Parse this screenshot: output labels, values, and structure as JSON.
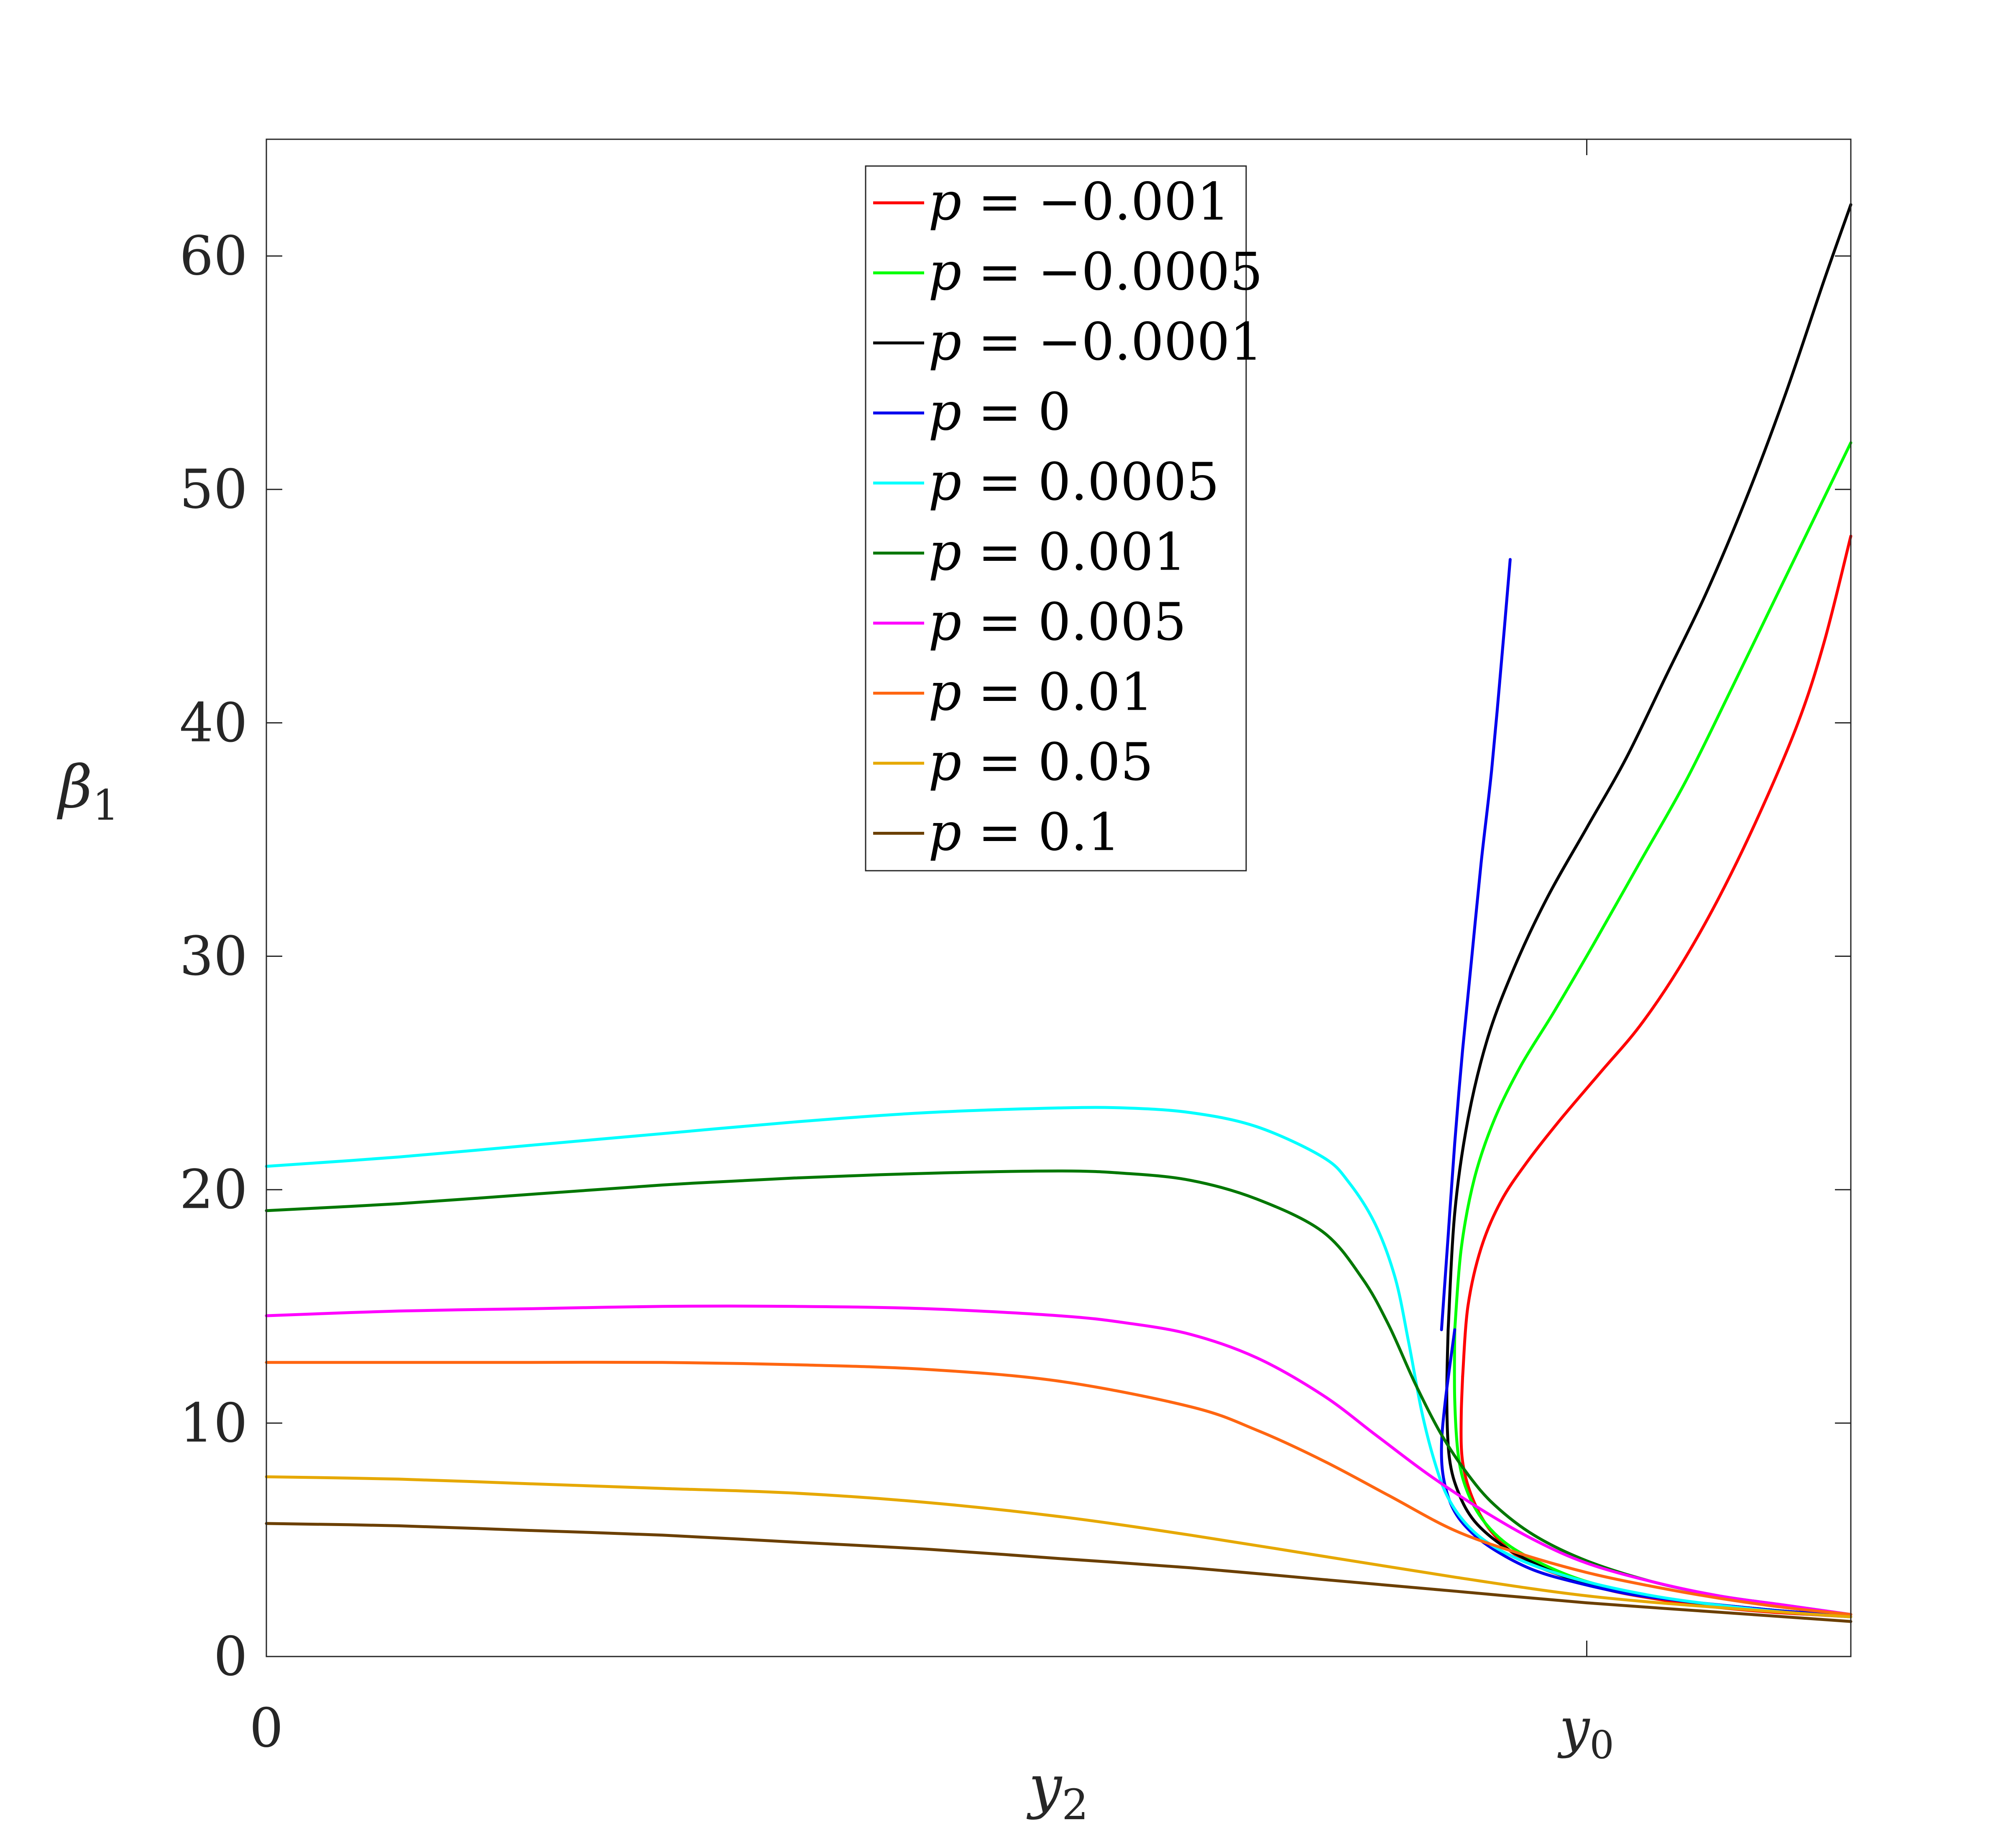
{
  "chart_data": {
    "type": "line",
    "title": "",
    "xlabel": {
      "base": "y",
      "sub": "2"
    },
    "ylabel": {
      "base": "β",
      "sub": "1"
    },
    "xlim": [
      0,
      1.2
    ],
    "ylim": [
      0,
      65
    ],
    "x_ticks": [
      {
        "value": 0,
        "label": "0"
      },
      {
        "value": 1,
        "label": "y",
        "sub": "0"
      }
    ],
    "y_ticks": [
      0,
      10,
      20,
      30,
      40,
      50,
      60
    ],
    "grid": false,
    "legend_position": "top-center",
    "series": [
      {
        "name": "p = −0.001",
        "color": "#ff0000",
        "x": [
          0.906,
          0.905,
          0.905,
          0.907,
          0.912,
          0.92,
          0.93,
          0.945,
          0.965,
          0.99,
          1.02,
          1.06,
          1.1,
          1.14,
          1.17,
          1.2
        ],
        "y": [
          12,
          10.5,
          9,
          8,
          7,
          6,
          5.2,
          4.4,
          3.8,
          3.3,
          2.8,
          2.4,
          2.1,
          1.9,
          1.8,
          1.7
        ]
      },
      {
        "name": "p = −0.001",
        "color": "#ff0000",
        "x": [
          0.906,
          0.91,
          0.92,
          0.935,
          0.955,
          0.98,
          1.01,
          1.04,
          1.07,
          1.1,
          1.13,
          1.16,
          1.18,
          1.2
        ],
        "y": [
          12,
          15,
          17.5,
          19.5,
          21.2,
          23,
          25,
          27,
          29.5,
          32.5,
          36,
          40,
          43.5,
          48
        ]
      },
      {
        "name": "p = −0.0005",
        "color": "#00ff00",
        "x": [
          0.9,
          0.9,
          0.903,
          0.91,
          0.922,
          0.94,
          0.965,
          0.995,
          1.03,
          1.07,
          1.12,
          1.16,
          1.2
        ],
        "y": [
          14,
          11,
          8.5,
          7,
          5.8,
          4.8,
          4,
          3.3,
          2.8,
          2.4,
          2.1,
          1.9,
          1.8
        ]
      },
      {
        "name": "p = −0.0005",
        "color": "#00ff00",
        "x": [
          0.9,
          0.905,
          0.915,
          0.93,
          0.95,
          0.975,
          1.005,
          1.04,
          1.075,
          1.11,
          1.14,
          1.17,
          1.2
        ],
        "y": [
          14,
          17.5,
          20.5,
          23,
          25.3,
          27.6,
          30.5,
          34,
          37.5,
          41.5,
          45,
          48.5,
          52
        ]
      },
      {
        "name": "p = −0.0001",
        "color": "#000000",
        "x": [
          0.895,
          0.894,
          0.896,
          0.903,
          0.915,
          0.935,
          0.96,
          0.99,
          1.03,
          1.07,
          1.12,
          1.16,
          1.2
        ],
        "y": [
          14,
          11,
          8.5,
          7,
          5.8,
          4.8,
          4,
          3.3,
          2.8,
          2.4,
          2.1,
          1.9,
          1.8
        ]
      },
      {
        "name": "p = −0.0001",
        "color": "#000000",
        "x": [
          0.895,
          0.9,
          0.91,
          0.925,
          0.945,
          0.97,
          1.0,
          1.03,
          1.06,
          1.09,
          1.12,
          1.15,
          1.18,
          1.2
        ],
        "y": [
          14,
          19,
          23,
          26.5,
          29.5,
          32.5,
          35.5,
          38.5,
          42,
          45.5,
          49.5,
          54,
          59,
          62.2
        ]
      },
      {
        "name": "p = 0",
        "color": "#0000ee",
        "x": [
          0.9,
          0.893,
          0.89,
          0.892,
          0.9,
          0.915,
          0.935,
          0.96,
          0.99,
          1.03,
          1.07,
          1.12,
          1.16,
          1.2
        ],
        "y": [
          14,
          11,
          9,
          7.5,
          6.2,
          5.2,
          4.4,
          3.7,
          3.2,
          2.7,
          2.4,
          2.1,
          1.9,
          1.8
        ]
      },
      {
        "name": "p = 0",
        "color": "#0000ee",
        "x": [
          0.89,
          0.895,
          0.9,
          0.906,
          0.913,
          0.92,
          0.928,
          0.936,
          0.942
        ],
        "y": [
          14,
          18,
          22,
          26,
          30,
          34,
          38,
          43,
          47
        ]
      },
      {
        "name": "p = 0.0005",
        "color": "#00ffff",
        "x": [
          0,
          0.1,
          0.2,
          0.3,
          0.4,
          0.5,
          0.6,
          0.65,
          0.7,
          0.75,
          0.8,
          0.82,
          0.84,
          0.855,
          0.865,
          0.875,
          0.885,
          0.895,
          0.91,
          0.93,
          0.96,
          1.0,
          1.05,
          1.1,
          1.15,
          1.2
        ],
        "y": [
          21,
          21.4,
          21.9,
          22.4,
          22.9,
          23.3,
          23.5,
          23.5,
          23.3,
          22.7,
          21.4,
          20.3,
          18.5,
          16.2,
          13.5,
          10.5,
          8.3,
          6.8,
          5.6,
          4.7,
          3.9,
          3.2,
          2.6,
          2.2,
          1.9,
          1.7
        ]
      },
      {
        "name": "p = 0.001",
        "color": "#007700",
        "x": [
          0,
          0.1,
          0.2,
          0.3,
          0.4,
          0.5,
          0.6,
          0.65,
          0.7,
          0.75,
          0.8,
          0.83,
          0.85,
          0.87,
          0.89,
          0.91,
          0.93,
          0.96,
          1.0,
          1.05,
          1.1,
          1.15,
          1.2
        ],
        "y": [
          19.1,
          19.4,
          19.8,
          20.2,
          20.5,
          20.7,
          20.8,
          20.7,
          20.4,
          19.6,
          18.2,
          16.2,
          14.2,
          11.7,
          9.5,
          7.8,
          6.5,
          5.2,
          4.1,
          3.2,
          2.6,
          2.2,
          1.8
        ]
      },
      {
        "name": "p = 0.005",
        "color": "#ff00ff",
        "x": [
          0,
          0.1,
          0.2,
          0.3,
          0.4,
          0.5,
          0.6,
          0.65,
          0.7,
          0.75,
          0.8,
          0.84,
          0.88,
          0.92,
          0.96,
          1.0,
          1.05,
          1.1,
          1.15,
          1.2
        ],
        "y": [
          14.6,
          14.8,
          14.9,
          15.0,
          15.0,
          14.9,
          14.6,
          14.3,
          13.8,
          12.8,
          11.2,
          9.5,
          7.8,
          6.3,
          5.0,
          4.0,
          3.2,
          2.6,
          2.2,
          1.8
        ]
      },
      {
        "name": "p = 0.01",
        "color": "#ff6611",
        "x": [
          0,
          0.1,
          0.2,
          0.3,
          0.4,
          0.5,
          0.6,
          0.7,
          0.75,
          0.8,
          0.85,
          0.9,
          0.95,
          1.0,
          1.05,
          1.1,
          1.15,
          1.2
        ],
        "y": [
          12.6,
          12.6,
          12.6,
          12.6,
          12.5,
          12.3,
          11.8,
          10.7,
          9.7,
          8.4,
          6.9,
          5.4,
          4.4,
          3.6,
          3.0,
          2.5,
          2.1,
          1.8
        ]
      },
      {
        "name": "p = 0.05",
        "color": "#e6a800",
        "x": [
          0,
          0.1,
          0.2,
          0.3,
          0.4,
          0.5,
          0.6,
          0.7,
          0.8,
          0.9,
          1.0,
          1.1,
          1.2
        ],
        "y": [
          7.7,
          7.6,
          7.4,
          7.2,
          7.0,
          6.6,
          6.0,
          5.2,
          4.3,
          3.4,
          2.6,
          2.1,
          1.7
        ]
      },
      {
        "name": "p = 0.1",
        "color": "#6b3f00",
        "x": [
          0,
          0.1,
          0.2,
          0.3,
          0.4,
          0.5,
          0.6,
          0.7,
          0.8,
          0.9,
          1.0,
          1.1,
          1.2
        ],
        "y": [
          5.7,
          5.6,
          5.4,
          5.2,
          4.9,
          4.6,
          4.2,
          3.8,
          3.3,
          2.8,
          2.3,
          1.9,
          1.5
        ]
      }
    ],
    "legend": [
      {
        "label": "= −0.001",
        "var": "p",
        "color": "#ff0000"
      },
      {
        "label": "= −0.0005",
        "var": "p",
        "color": "#00ff00"
      },
      {
        "label": "= −0.0001",
        "var": "p",
        "color": "#000000"
      },
      {
        "label": "= 0",
        "var": "p",
        "color": "#0000ee"
      },
      {
        "label": "= 0.0005",
        "var": "p",
        "color": "#00ffff"
      },
      {
        "label": "= 0.001",
        "var": "p",
        "color": "#007700"
      },
      {
        "label": "= 0.005",
        "var": "p",
        "color": "#ff00ff"
      },
      {
        "label": "= 0.01",
        "var": "p",
        "color": "#ff6611"
      },
      {
        "label": "= 0.05",
        "var": "p",
        "color": "#e6a800"
      },
      {
        "label": "= 0.1",
        "var": "p",
        "color": "#6b3f00"
      }
    ]
  }
}
